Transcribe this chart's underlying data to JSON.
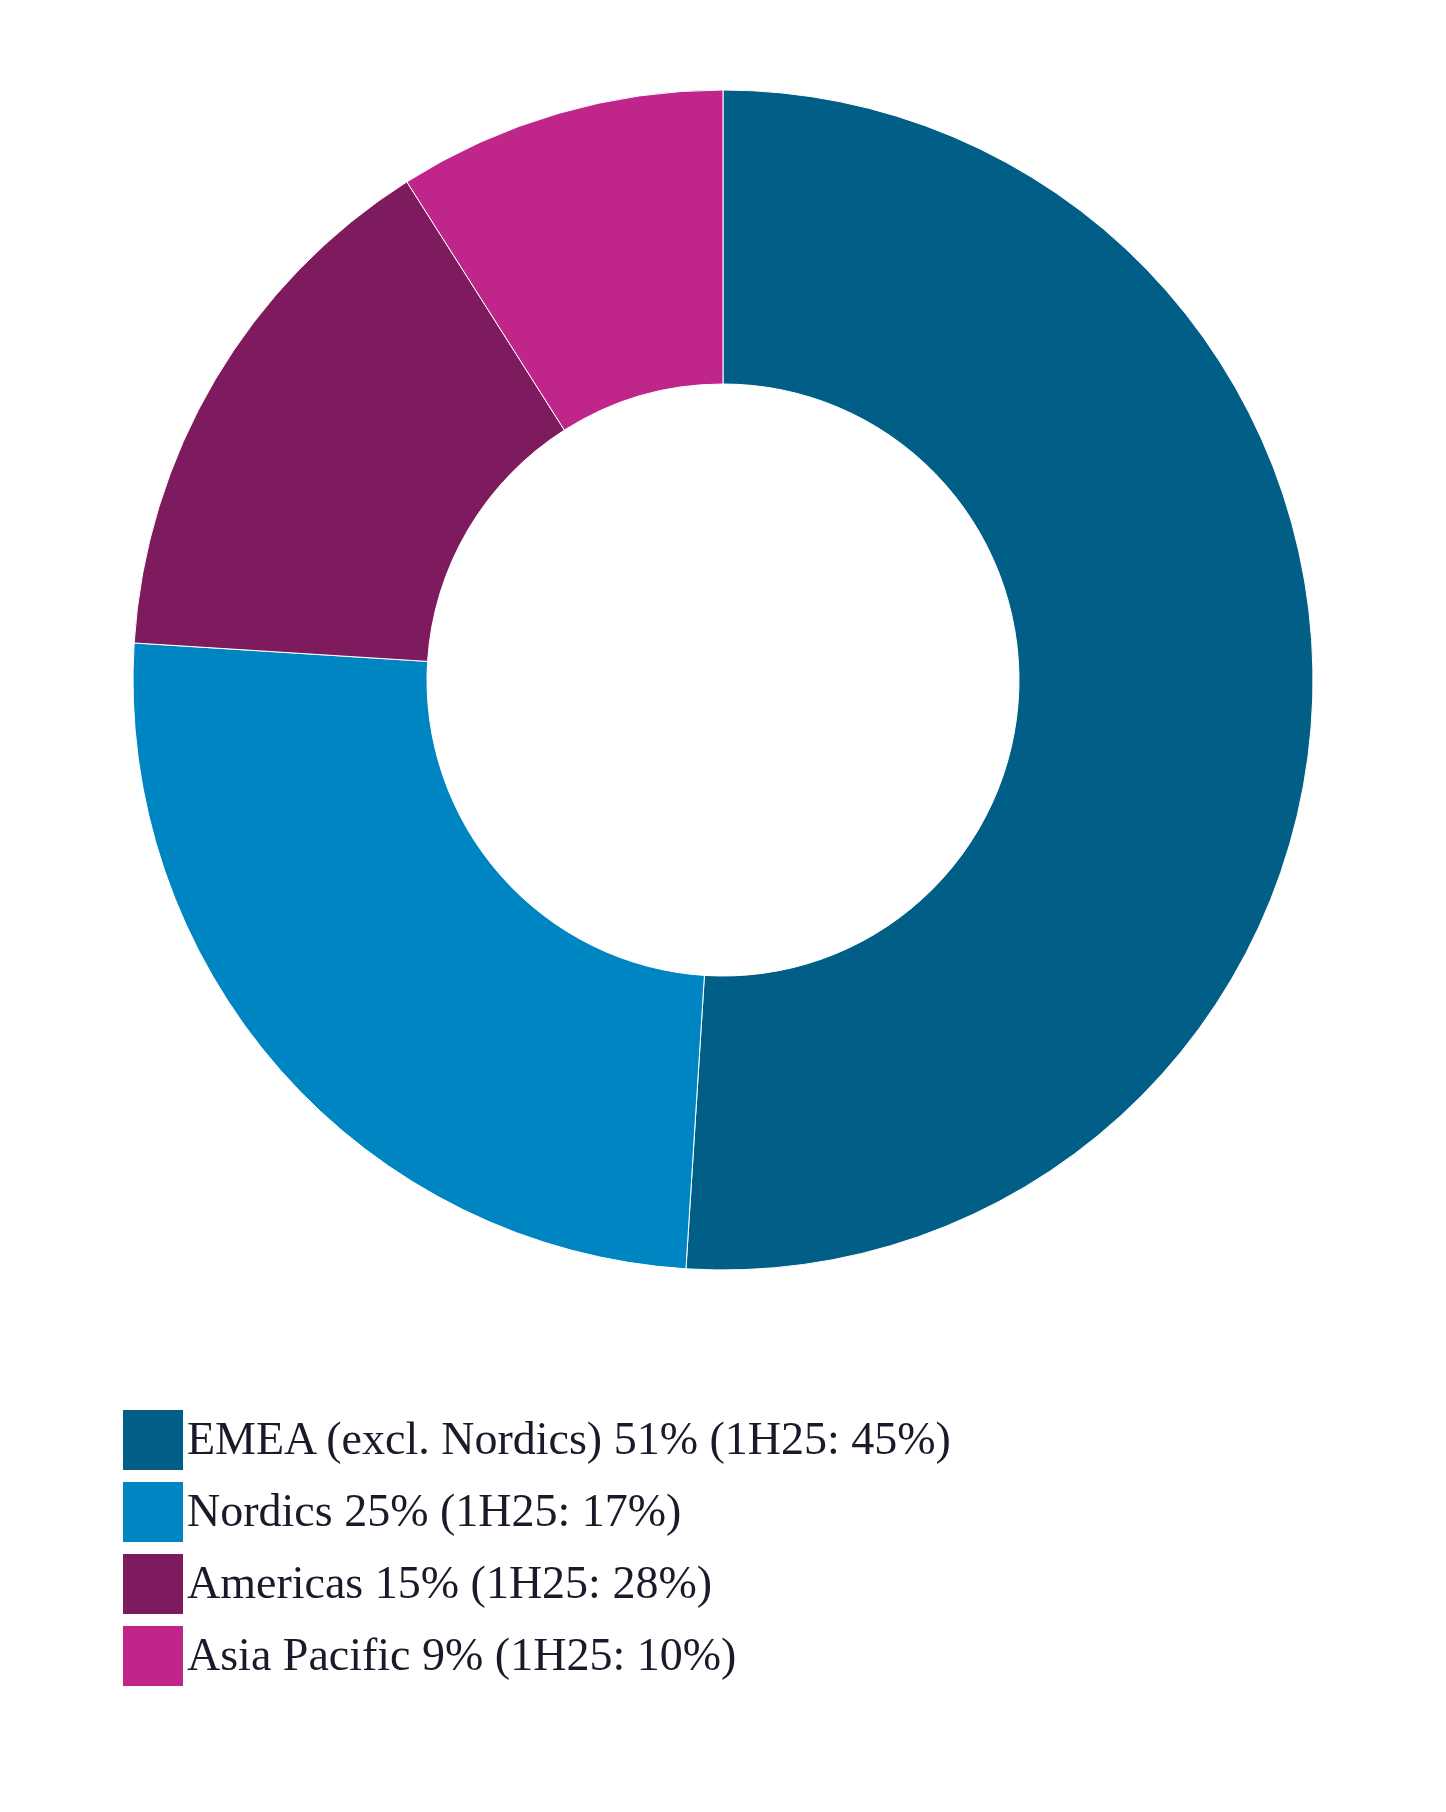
{
  "chart_data": {
    "type": "donut",
    "categories": [
      "EMEA (excl. Nordics) 51% (1H25: 45%)",
      "Nordics 25% (1H25: 17%)",
      "Americas 15% (1H25: 28%)",
      "Asia Pacific 9% (1H25: 10%)"
    ],
    "values": [
      51,
      25,
      15,
      9
    ],
    "colors": [
      "#005e87",
      "#0085c3",
      "#7e1a5e",
      "#c0258a"
    ],
    "legend": "bottom"
  }
}
